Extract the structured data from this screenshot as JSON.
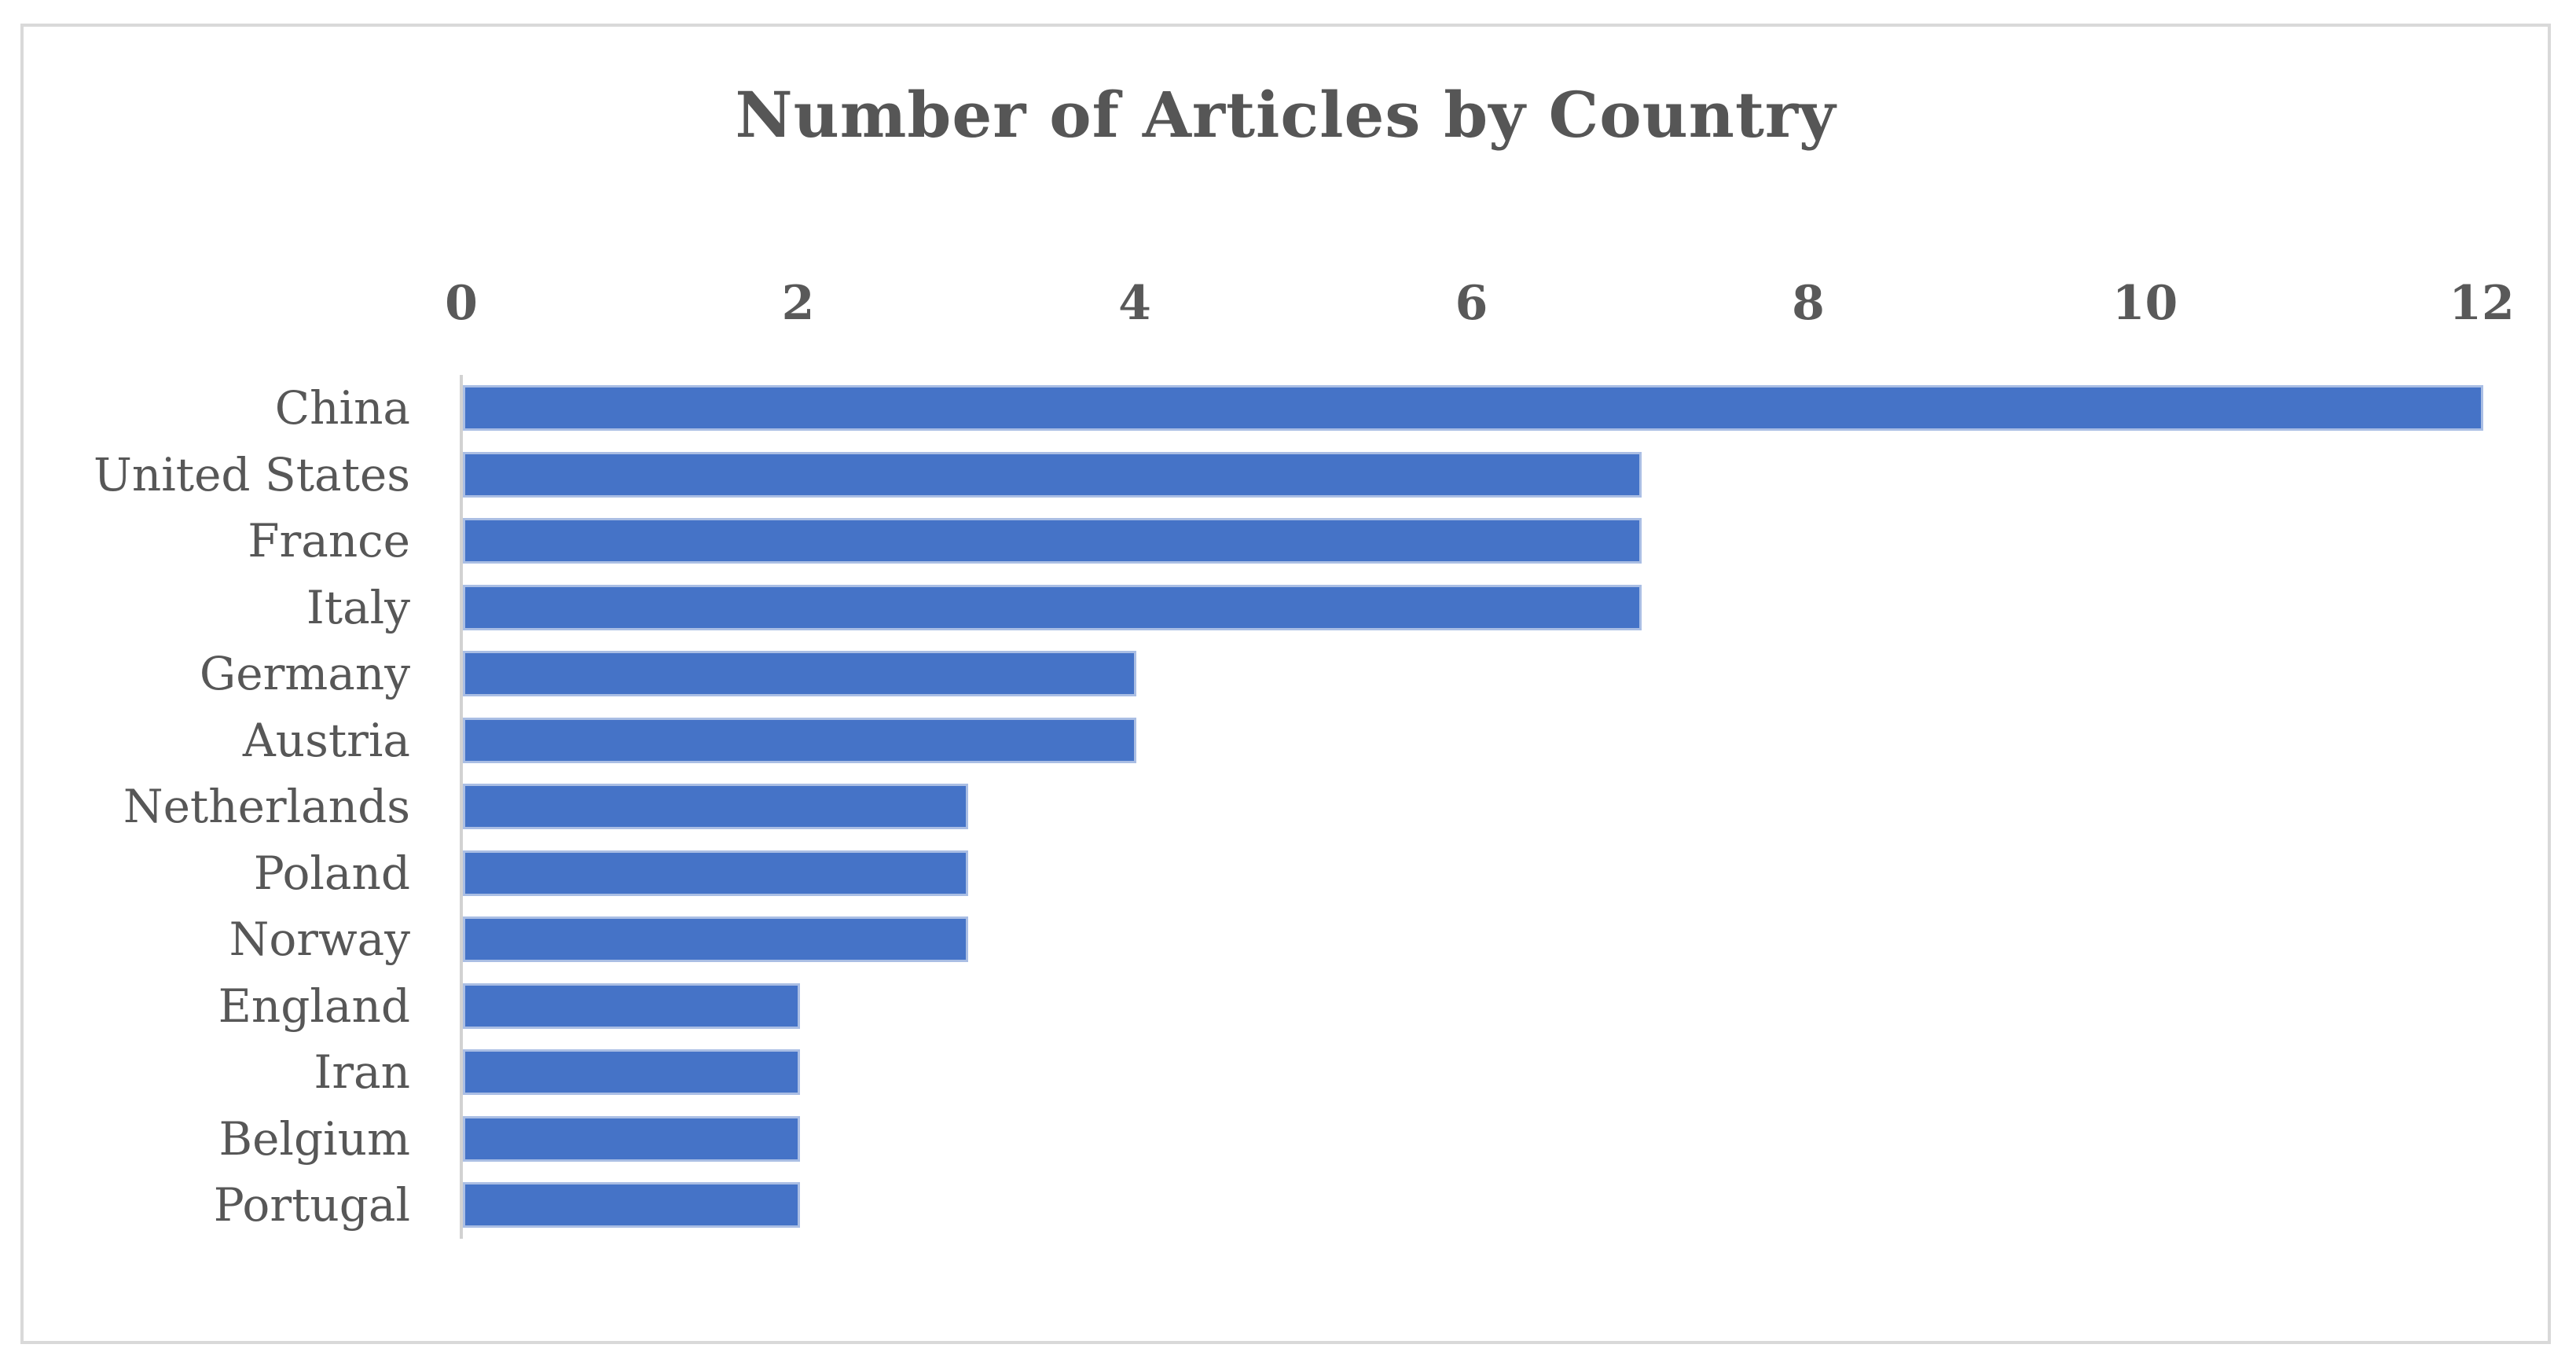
{
  "chart_data": {
    "type": "bar",
    "orientation": "horizontal",
    "title": "Number of Articles by Country",
    "categories": [
      "China",
      "United States",
      "France",
      "Italy",
      "Germany",
      "Austria",
      "Netherlands",
      "Poland",
      "Norway",
      "England",
      "Iran",
      "Belgium",
      "Portugal"
    ],
    "values": [
      12,
      7,
      7,
      7,
      4,
      4,
      3,
      3,
      3,
      2,
      2,
      2,
      2
    ],
    "x_ticks": [
      0,
      2,
      4,
      6,
      8,
      10,
      12
    ],
    "xlim": [
      0,
      12
    ],
    "xlabel": "",
    "ylabel": "",
    "axis_position": "top",
    "grid": false,
    "legend": "none",
    "colors": {
      "bar_fill": "#4573c7",
      "bar_border": "#aabee4",
      "axis_line": "#d2d2d2",
      "text": "#595959",
      "title_text": "#565656",
      "frame_border": "#d9d9d9",
      "background": "#ffffff"
    }
  }
}
